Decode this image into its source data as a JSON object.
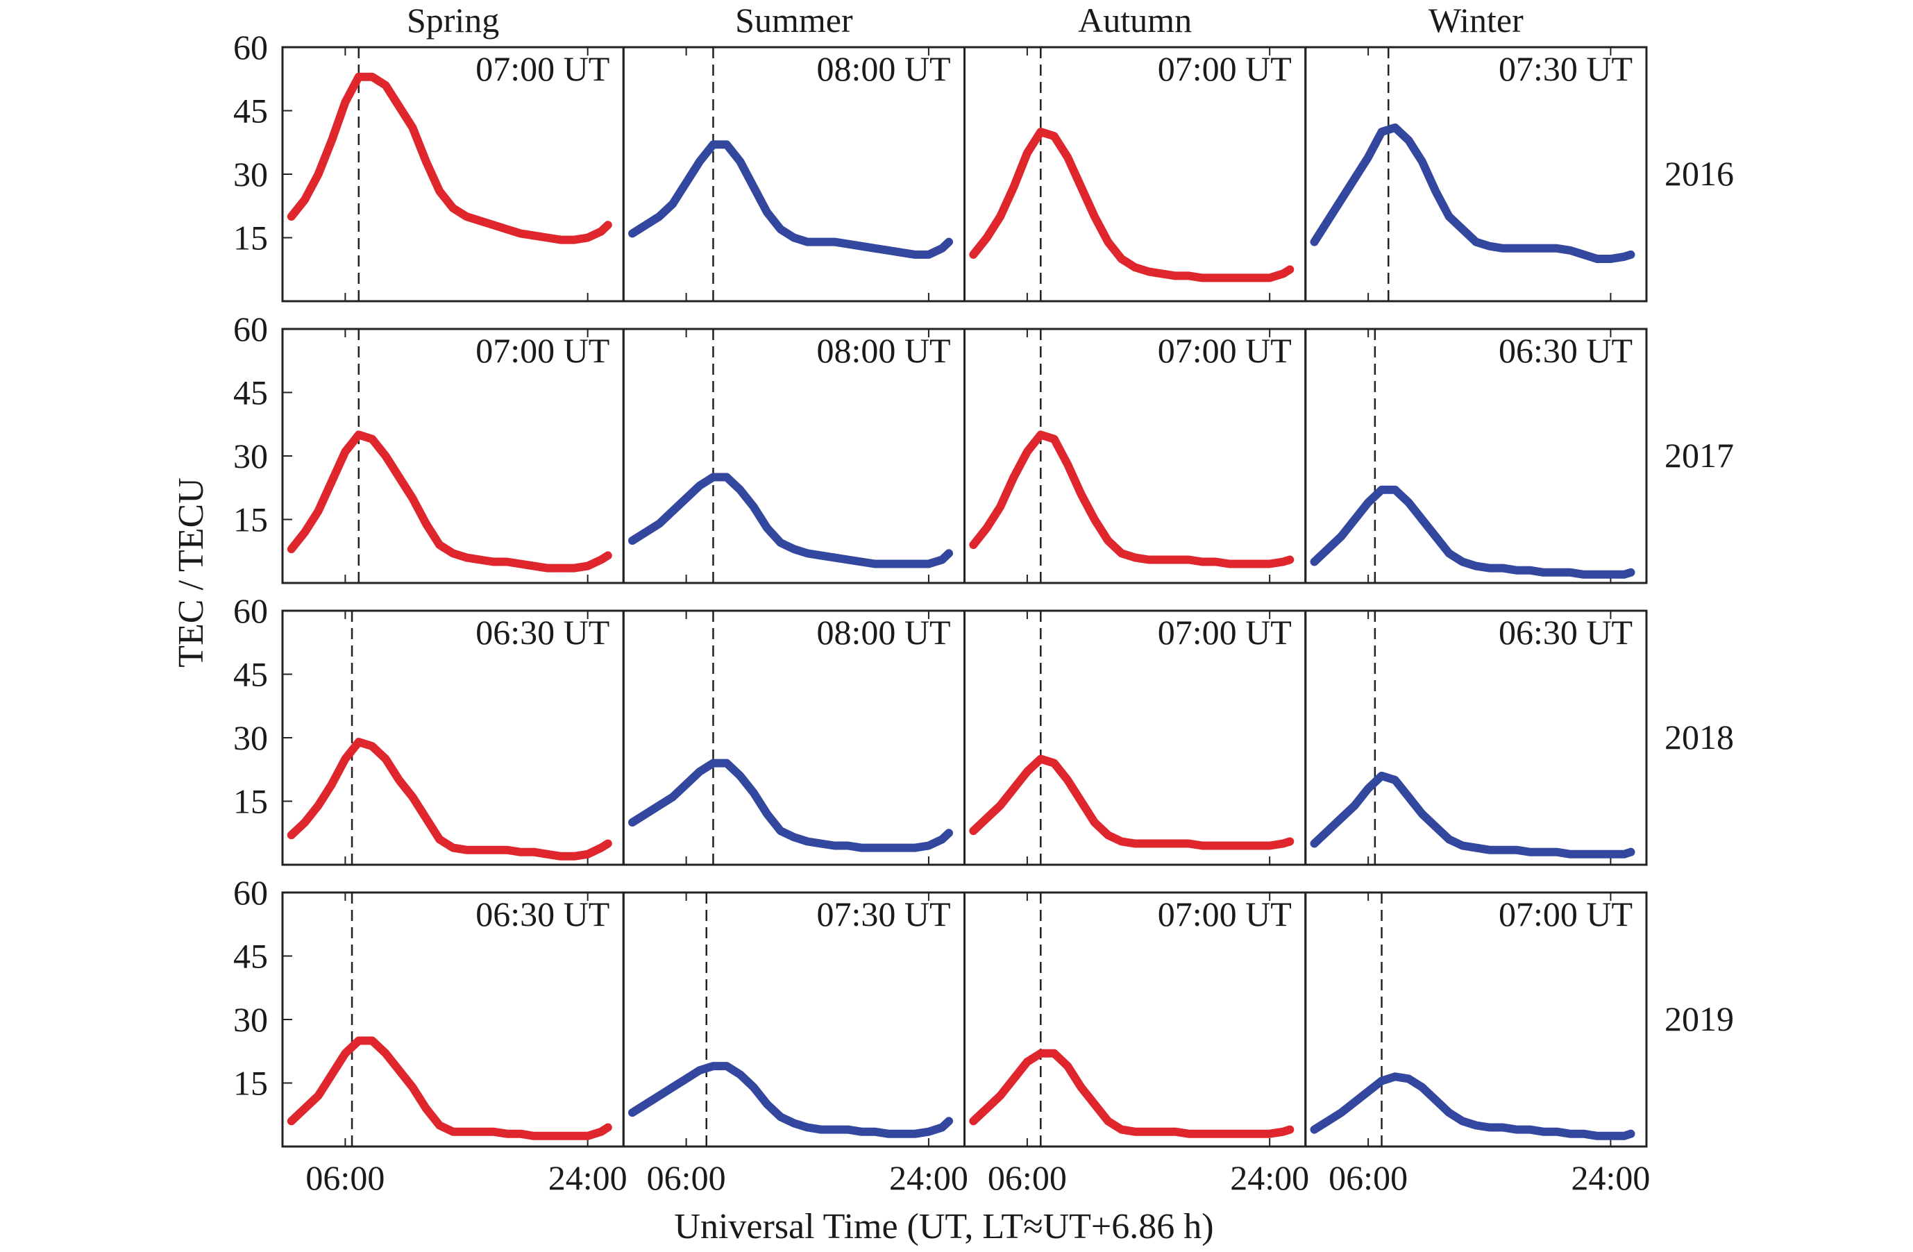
{
  "chart_data": {
    "type": "line",
    "seasons": [
      "Spring",
      "Summer",
      "Autumn",
      "Winter"
    ],
    "years": [
      "2016",
      "2017",
      "2018",
      "2019"
    ],
    "xlabel": "Universal Time (UT,  LT≈UT+6.86 h)",
    "ylabel": "TEC / TECU",
    "ylim": [
      0,
      60
    ],
    "yticks": [
      15,
      30,
      45,
      60
    ],
    "xlim": [
      0,
      24
    ],
    "xtick_values": [
      4,
      22
    ],
    "xtick_labels": [
      "06:00",
      "24:00"
    ],
    "colors": {
      "Spring": "#e0262d",
      "Summer": "#34479f",
      "Autumn": "#e0262d",
      "Winter": "#34479f"
    },
    "x_hours": [
      0,
      1,
      2,
      3,
      4,
      5,
      6,
      7,
      8,
      9,
      10,
      11,
      12,
      13,
      14,
      15,
      16,
      17,
      18,
      19,
      20,
      21,
      22,
      23,
      23.5
    ],
    "panels": [
      {
        "year": "2016",
        "season": "Spring",
        "peak_label": "07:00 UT",
        "peak_hour": 5.0,
        "tec": [
          20,
          24,
          30,
          38,
          47,
          53,
          53,
          51,
          46,
          41,
          33,
          26,
          22,
          20,
          19,
          18,
          17,
          16,
          15.5,
          15,
          14.5,
          14.5,
          15,
          16.5,
          18
        ]
      },
      {
        "year": "2016",
        "season": "Summer",
        "peak_label": "08:00 UT",
        "peak_hour": 6.0,
        "tec": [
          16,
          18,
          20,
          23,
          28,
          33,
          37,
          37,
          33,
          27,
          21,
          17,
          15,
          14,
          14,
          14,
          13.5,
          13,
          12.5,
          12,
          11.5,
          11,
          11,
          12.5,
          14
        ]
      },
      {
        "year": "2016",
        "season": "Autumn",
        "peak_label": "07:00 UT",
        "peak_hour": 5.0,
        "tec": [
          11,
          15,
          20,
          27,
          35,
          40,
          39,
          34,
          27,
          20,
          14,
          10,
          8,
          7,
          6.5,
          6,
          6,
          5.5,
          5.5,
          5.5,
          5.5,
          5.5,
          5.5,
          6.5,
          7.5
        ]
      },
      {
        "year": "2016",
        "season": "Winter",
        "peak_label": "07:30 UT",
        "peak_hour": 5.5,
        "tec": [
          14,
          19,
          24,
          29,
          34,
          40,
          41,
          38,
          33,
          26,
          20,
          17,
          14,
          13,
          12.5,
          12.5,
          12.5,
          12.5,
          12.5,
          12,
          11,
          10,
          10,
          10.5,
          11
        ]
      },
      {
        "year": "2017",
        "season": "Spring",
        "peak_label": "07:00 UT",
        "peak_hour": 5.0,
        "tec": [
          8,
          12,
          17,
          24,
          31,
          35,
          34,
          30,
          25,
          20,
          14,
          9,
          7,
          6,
          5.5,
          5,
          5,
          4.5,
          4,
          3.5,
          3.5,
          3.5,
          4,
          5.5,
          6.5
        ]
      },
      {
        "year": "2017",
        "season": "Summer",
        "peak_label": "08:00 UT",
        "peak_hour": 6.0,
        "tec": [
          10,
          12,
          14,
          17,
          20,
          23,
          25,
          25,
          22,
          18,
          13,
          9.5,
          8,
          7,
          6.5,
          6,
          5.5,
          5,
          4.5,
          4.5,
          4.5,
          4.5,
          4.5,
          5.5,
          7
        ]
      },
      {
        "year": "2017",
        "season": "Autumn",
        "peak_label": "07:00 UT",
        "peak_hour": 5.0,
        "tec": [
          9,
          13,
          18,
          25,
          31,
          35,
          34,
          28,
          21,
          15,
          10,
          7,
          6,
          5.5,
          5.5,
          5.5,
          5.5,
          5,
          5,
          4.5,
          4.5,
          4.5,
          4.5,
          5,
          5.5
        ]
      },
      {
        "year": "2017",
        "season": "Winter",
        "peak_label": "06:30 UT",
        "peak_hour": 4.5,
        "tec": [
          5,
          8,
          11,
          15,
          19,
          22,
          22,
          19,
          15,
          11,
          7,
          5,
          4,
          3.5,
          3.5,
          3,
          3,
          2.5,
          2.5,
          2.5,
          2,
          2,
          2,
          2,
          2.5
        ]
      },
      {
        "year": "2018",
        "season": "Spring",
        "peak_label": "06:30 UT",
        "peak_hour": 4.5,
        "tec": [
          7,
          10,
          14,
          19,
          25,
          29,
          28,
          25,
          20,
          16,
          11,
          6,
          4,
          3.5,
          3.5,
          3.5,
          3.5,
          3,
          3,
          2.5,
          2,
          2,
          2.5,
          4,
          5
        ]
      },
      {
        "year": "2018",
        "season": "Summer",
        "peak_label": "08:00 UT",
        "peak_hour": 6.0,
        "tec": [
          10,
          12,
          14,
          16,
          19,
          22,
          24,
          24,
          21,
          17,
          12,
          8,
          6.5,
          5.5,
          5,
          4.5,
          4.5,
          4,
          4,
          4,
          4,
          4,
          4.5,
          6,
          7.5
        ]
      },
      {
        "year": "2018",
        "season": "Autumn",
        "peak_label": "07:00 UT",
        "peak_hour": 5.0,
        "tec": [
          8,
          11,
          14,
          18,
          22,
          25,
          24,
          20,
          15,
          10,
          7,
          5.5,
          5,
          5,
          5,
          5,
          5,
          4.5,
          4.5,
          4.5,
          4.5,
          4.5,
          4.5,
          5,
          5.5
        ]
      },
      {
        "year": "2018",
        "season": "Winter",
        "peak_label": "06:30 UT",
        "peak_hour": 4.5,
        "tec": [
          5,
          8,
          11,
          14,
          18,
          21,
          20,
          16,
          12,
          9,
          6,
          4.5,
          4,
          3.5,
          3.5,
          3.5,
          3,
          3,
          3,
          2.5,
          2.5,
          2.5,
          2.5,
          2.5,
          3
        ]
      },
      {
        "year": "2019",
        "season": "Spring",
        "peak_label": "06:30 UT",
        "peak_hour": 4.5,
        "tec": [
          6,
          9,
          12,
          17,
          22,
          25,
          25,
          22,
          18,
          14,
          9,
          5,
          3.5,
          3.5,
          3.5,
          3.5,
          3,
          3,
          2.5,
          2.5,
          2.5,
          2.5,
          2.5,
          3.5,
          4.5
        ]
      },
      {
        "year": "2019",
        "season": "Summer",
        "peak_label": "07:30 UT",
        "peak_hour": 5.5,
        "tec": [
          8,
          10,
          12,
          14,
          16,
          18,
          19,
          19,
          17,
          14,
          10,
          7,
          5.5,
          4.5,
          4,
          4,
          4,
          3.5,
          3.5,
          3,
          3,
          3,
          3.5,
          4.5,
          6
        ]
      },
      {
        "year": "2019",
        "season": "Autumn",
        "peak_label": "07:00 UT",
        "peak_hour": 5.0,
        "tec": [
          6,
          9,
          12,
          16,
          20,
          22,
          22,
          19,
          14,
          10,
          6,
          4,
          3.5,
          3.5,
          3.5,
          3.5,
          3,
          3,
          3,
          3,
          3,
          3,
          3,
          3.5,
          4
        ]
      },
      {
        "year": "2019",
        "season": "Winter",
        "peak_label": "07:00 UT",
        "peak_hour": 5.0,
        "tec": [
          4,
          6,
          8,
          10.5,
          13,
          15.5,
          16.5,
          16,
          14,
          11,
          8,
          6,
          5,
          4.5,
          4.5,
          4,
          4,
          3.5,
          3.5,
          3,
          3,
          2.5,
          2.5,
          2.5,
          3
        ]
      }
    ]
  }
}
